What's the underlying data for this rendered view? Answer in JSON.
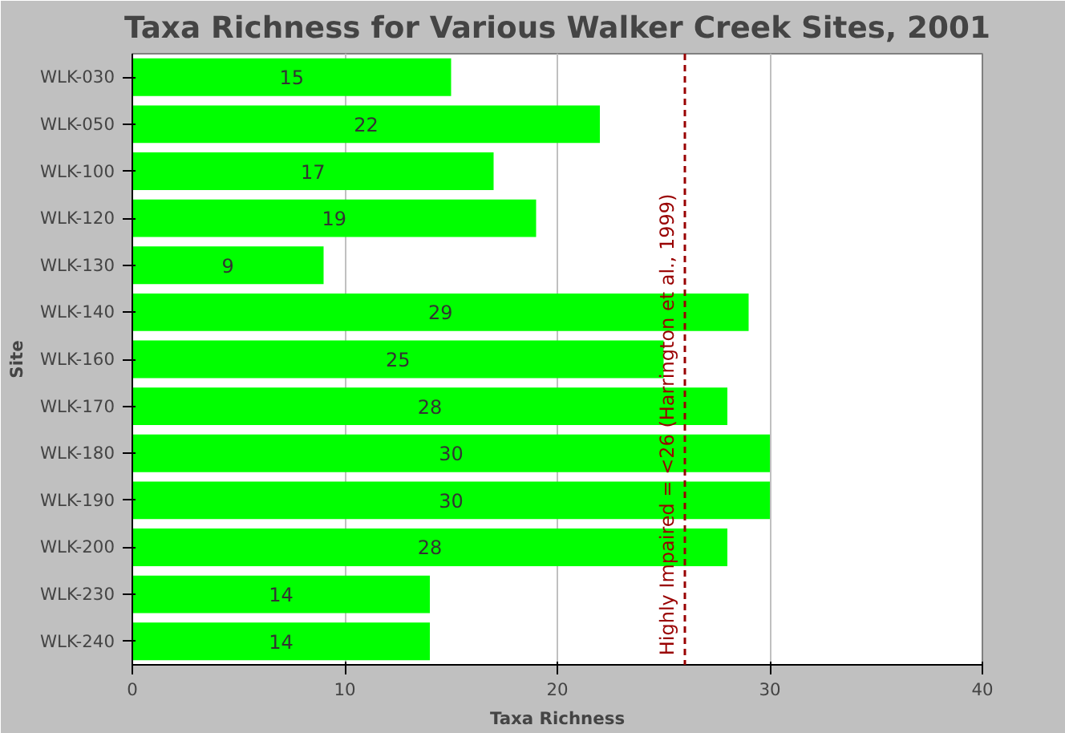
{
  "chart_data": {
    "type": "bar",
    "orientation": "horizontal",
    "title": "Taxa Richness for Various Walker Creek Sites, 2001",
    "xlabel": "Taxa Richness",
    "ylabel": "Site",
    "categories": [
      "WLK-030",
      "WLK-050",
      "WLK-100",
      "WLK-120",
      "WLK-130",
      "WLK-140",
      "WLK-160",
      "WLK-170",
      "WLK-180",
      "WLK-190",
      "WLK-200",
      "WLK-230",
      "WLK-240"
    ],
    "values": [
      15,
      22,
      17,
      19,
      9,
      29,
      25,
      28,
      30,
      30,
      28,
      14,
      14
    ],
    "color": "#00ff00",
    "data_labels": true,
    "xlim": [
      0,
      40
    ],
    "xticks": [
      0,
      10,
      20,
      30,
      40
    ],
    "grid": "x",
    "ref_lines": [
      {
        "axis": "x",
        "value": 26,
        "label": "Highly Impaired = <26 (Harrington et al., 1999)",
        "color": "#990000",
        "line_style": "dashed"
      }
    ]
  }
}
